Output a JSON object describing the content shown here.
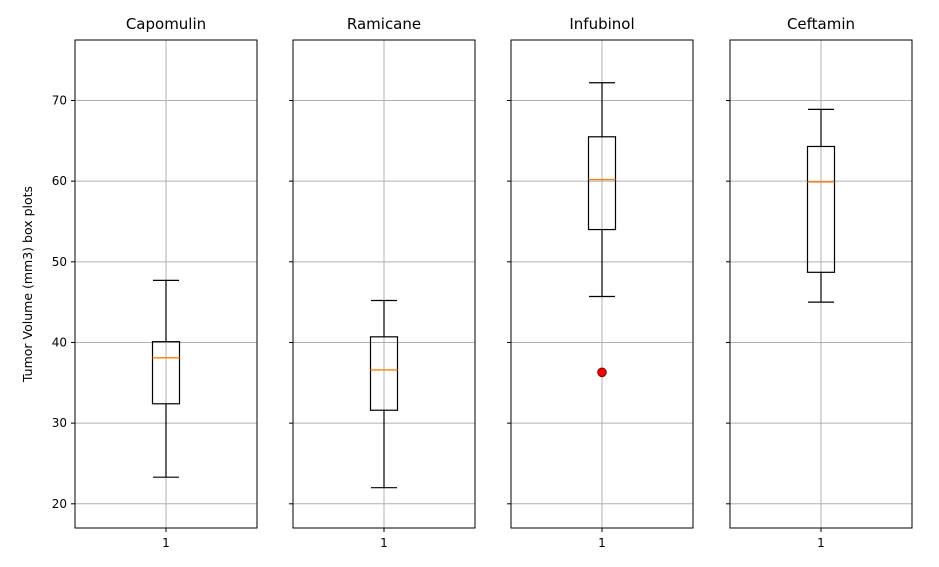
{
  "chart_data": {
    "type": "box",
    "ylabel": "Tumor Volume (mm3) box plots",
    "ylim": [
      17,
      77.5
    ],
    "yticks": [
      20,
      30,
      40,
      50,
      60,
      70
    ],
    "grid": true,
    "sharey": true,
    "panels": [
      {
        "title": "Capomulin",
        "xtick": "1",
        "whisker_low": 23.3,
        "q1": 32.4,
        "median": 38.1,
        "q3": 40.1,
        "whisker_high": 47.7,
        "outliers": []
      },
      {
        "title": "Ramicane",
        "xtick": "1",
        "whisker_low": 22.0,
        "q1": 31.6,
        "median": 36.6,
        "q3": 40.7,
        "whisker_high": 45.2,
        "outliers": []
      },
      {
        "title": "Infubinol",
        "xtick": "1",
        "whisker_low": 45.7,
        "q1": 54.0,
        "median": 60.2,
        "q3": 65.5,
        "whisker_high": 72.2,
        "outliers": [
          36.3
        ]
      },
      {
        "title": "Ceftamin",
        "xtick": "1",
        "whisker_low": 45.0,
        "q1": 48.7,
        "median": 59.9,
        "q3": 64.3,
        "whisker_high": 68.9,
        "outliers": []
      }
    ],
    "colors": {
      "box": "#000000",
      "median": "#ff7f0e",
      "grid": "#b0b0b0",
      "outlier_fill": "#ff0000",
      "outlier_edge": "#8b0000"
    }
  }
}
